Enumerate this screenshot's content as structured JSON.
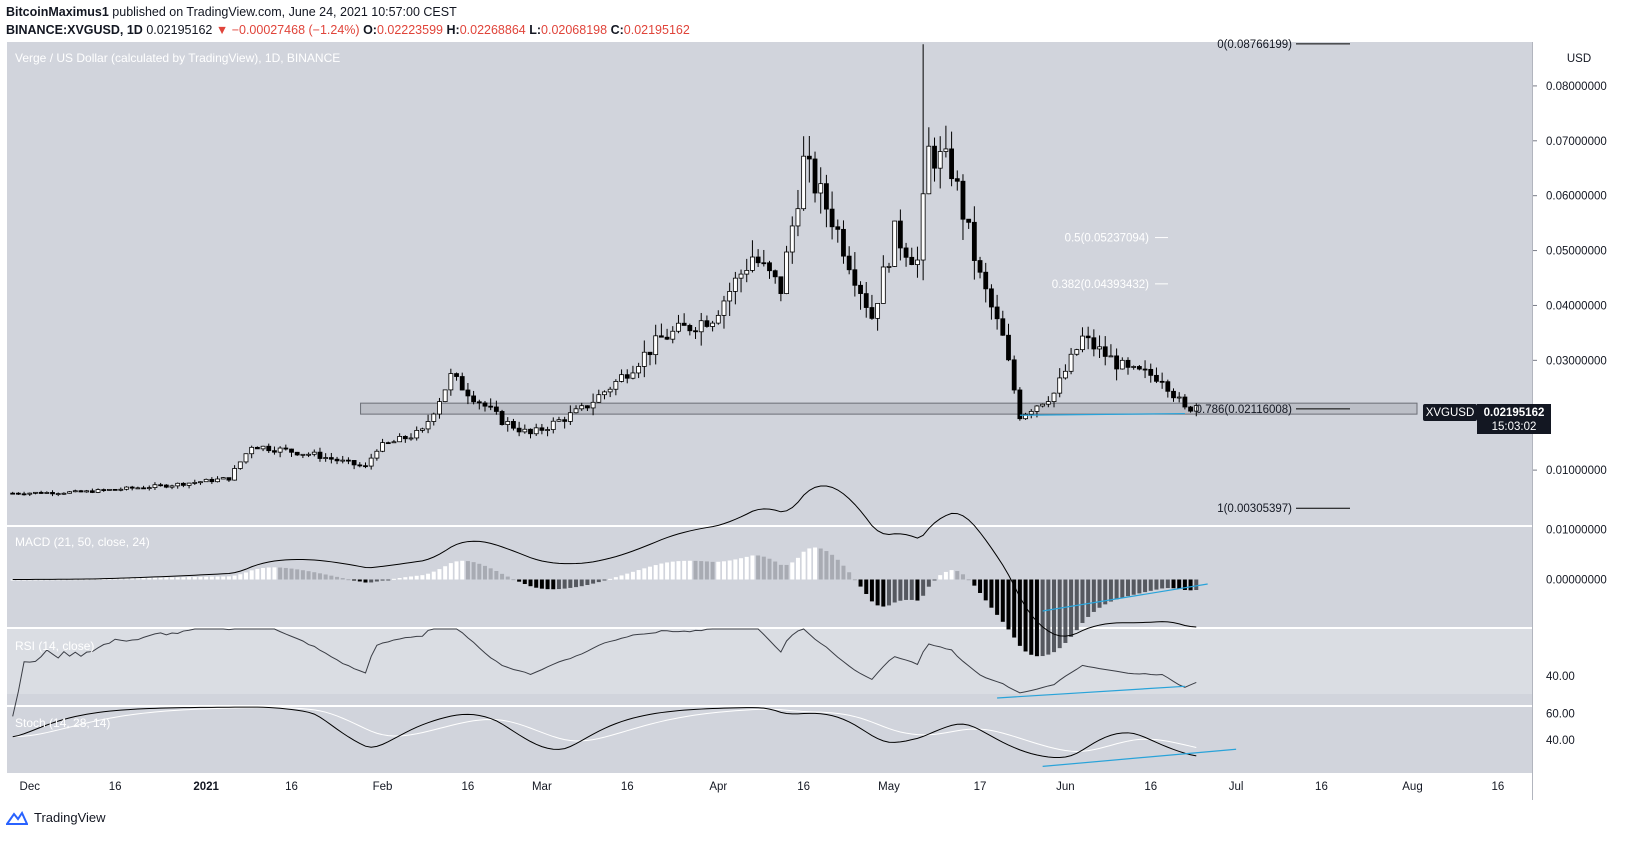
{
  "header": {
    "user": "BitcoinMaximus1",
    "published": "published on TradingView.com, June 24, 2021 10:57:00 CEST",
    "symbol_line": "BINANCE:XVGUSD, 1D",
    "last": "0.02195162",
    "change": "▼ −0.00027468 (−1.24%)",
    "o_label": "O:",
    "o": "0.02223599",
    "h_label": "H:",
    "h": "0.02268864",
    "l_label": "L:",
    "l": "0.02068198",
    "c_label": "C:",
    "c": "0.02195162"
  },
  "footer": {
    "brand": "TradingView"
  },
  "colors": {
    "plot_bg": "#d1d4dc",
    "up": "#ffffff",
    "down": "#000000",
    "trend": "#29a3d9",
    "loss": "#e0443a"
  },
  "chart_data": [
    {
      "type": "candlestick",
      "title": "Verge / US Dollar (calculated by TradingView), 1D, BINANCE",
      "currency": "USD",
      "ylim": [
        0,
        0.088
      ],
      "y_ticks": [
        "0.08000000",
        "0.07000000",
        "0.06000000",
        "0.05000000",
        "0.04000000",
        "0.03000000",
        "0.01000000"
      ],
      "x_start": "2020-11-27",
      "x_end": "2021-08-22",
      "x_ticks": [
        {
          "date": "2020-12-01",
          "label": "Dec"
        },
        {
          "date": "2020-12-16",
          "label": "16"
        },
        {
          "date": "2021-01-01",
          "label": "2021"
        },
        {
          "date": "2021-01-16",
          "label": "16"
        },
        {
          "date": "2021-02-01",
          "label": "Feb"
        },
        {
          "date": "2021-02-16",
          "label": "16"
        },
        {
          "date": "2021-03-01",
          "label": "Mar"
        },
        {
          "date": "2021-03-16",
          "label": "16"
        },
        {
          "date": "2021-04-01",
          "label": "Apr"
        },
        {
          "date": "2021-04-16",
          "label": "16"
        },
        {
          "date": "2021-05-01",
          "label": "May"
        },
        {
          "date": "2021-05-17",
          "label": "17"
        },
        {
          "date": "2021-06-01",
          "label": "Jun"
        },
        {
          "date": "2021-06-16",
          "label": "16"
        },
        {
          "date": "2021-07-01",
          "label": "Jul"
        },
        {
          "date": "2021-07-16",
          "label": "16"
        },
        {
          "date": "2021-08-01",
          "label": "Aug"
        },
        {
          "date": "2021-08-16",
          "label": "16"
        }
      ],
      "close_series": [
        {
          "date": "2020-11-28",
          "close": 0.0058
        },
        {
          "date": "2020-12-10",
          "close": 0.006
        },
        {
          "date": "2020-12-25",
          "close": 0.0072
        },
        {
          "date": "2021-01-05",
          "close": 0.0085
        },
        {
          "date": "2021-01-09",
          "close": 0.0145
        },
        {
          "date": "2021-01-20",
          "close": 0.0128
        },
        {
          "date": "2021-01-29",
          "close": 0.0105
        },
        {
          "date": "2021-01-31",
          "close": 0.014
        },
        {
          "date": "2021-02-08",
          "close": 0.017
        },
        {
          "date": "2021-02-13",
          "close": 0.027
        },
        {
          "date": "2021-02-22",
          "close": 0.019
        },
        {
          "date": "2021-02-27",
          "close": 0.0165
        },
        {
          "date": "2021-03-08",
          "close": 0.021
        },
        {
          "date": "2021-03-14",
          "close": 0.026
        },
        {
          "date": "2021-03-22",
          "close": 0.034
        },
        {
          "date": "2021-03-31",
          "close": 0.038
        },
        {
          "date": "2021-04-07",
          "close": 0.049
        },
        {
          "date": "2021-04-12",
          "close": 0.043
        },
        {
          "date": "2021-04-16",
          "close": 0.066
        },
        {
          "date": "2021-04-21",
          "close": 0.056
        },
        {
          "date": "2021-04-28",
          "close": 0.038
        },
        {
          "date": "2021-05-02",
          "close": 0.053
        },
        {
          "date": "2021-05-06",
          "close": 0.048
        },
        {
          "date": "2021-05-08",
          "close": 0.068
        },
        {
          "date": "2021-05-12",
          "close": 0.065
        },
        {
          "date": "2021-05-17",
          "close": 0.045
        },
        {
          "date": "2021-05-21",
          "close": 0.034
        },
        {
          "date": "2021-05-24",
          "close": 0.02
        },
        {
          "date": "2021-05-30",
          "close": 0.024
        },
        {
          "date": "2021-06-04",
          "close": 0.034
        },
        {
          "date": "2021-06-12",
          "close": 0.028
        },
        {
          "date": "2021-06-18",
          "close": 0.027
        },
        {
          "date": "2021-06-22",
          "close": 0.021
        },
        {
          "date": "2021-06-24",
          "close": 0.02195162
        }
      ],
      "peak": {
        "date": "2021-05-07",
        "high": 0.0876
      },
      "support_zone": [
        0.0202,
        0.0222
      ],
      "fib_levels": [
        {
          "label": "0(0.08766199)",
          "value": 0.08766199
        },
        {
          "label": "0.5(0.05237094)",
          "value": 0.05237094
        },
        {
          "label": "0.382(0.04393432)",
          "value": 0.04393432
        },
        {
          "label": "0.786(0.02116008)",
          "value": 0.02116008
        },
        {
          "label": "1(0.00305397)",
          "value": 0.00305397
        }
      ],
      "price_tag": {
        "symbol": "XVGUSD",
        "price": "0.02195162",
        "countdown": "15:03:02"
      }
    },
    {
      "type": "line",
      "title": "MACD (21, 50, close, 24)",
      "y_ticks": [
        "0.01000000",
        "0.00000000"
      ],
      "ylim": [
        -0.0095,
        0.0105
      ]
    },
    {
      "type": "line",
      "title": "RSI (14, close)",
      "y_ticks": [
        "40.00"
      ],
      "ylim": [
        15,
        80
      ]
    },
    {
      "type": "line",
      "title": "Stoch (14, 28, 14)",
      "y_ticks": [
        "60.00",
        "40.00"
      ],
      "ylim": [
        15,
        65
      ]
    }
  ]
}
